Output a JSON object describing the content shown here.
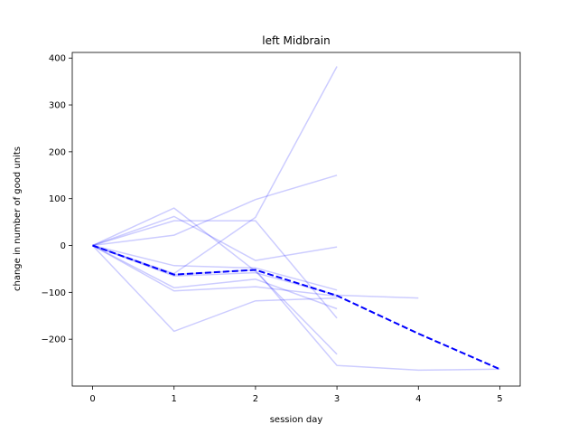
{
  "chart_data": {
    "type": "line",
    "title": "left Midbrain",
    "xlabel": "session day",
    "ylabel": "change in number of good units",
    "xlim": [
      -0.25,
      5.25
    ],
    "ylim": [
      -300,
      412
    ],
    "xticks": [
      0,
      1,
      2,
      3,
      4,
      5
    ],
    "yticks": [
      -200,
      -100,
      0,
      100,
      200,
      300,
      400
    ],
    "grid": false,
    "series": [
      {
        "style": "faint",
        "x": [
          0,
          1,
          2,
          3
        ],
        "y": [
          0,
          80,
          -55,
          -232
        ]
      },
      {
        "style": "faint",
        "x": [
          0,
          1,
          2,
          3
        ],
        "y": [
          0,
          53,
          53,
          -155
        ]
      },
      {
        "style": "faint",
        "x": [
          0,
          1,
          2,
          3
        ],
        "y": [
          0,
          22,
          98,
          150
        ]
      },
      {
        "style": "faint",
        "x": [
          0,
          1,
          2,
          3
        ],
        "y": [
          0,
          -60,
          60,
          382
        ]
      },
      {
        "style": "faint",
        "x": [
          0,
          1,
          2,
          3
        ],
        "y": [
          0,
          62,
          -32,
          -3
        ]
      },
      {
        "style": "faint",
        "x": [
          0,
          1,
          2,
          3
        ],
        "y": [
          0,
          -43,
          -48,
          -95
        ]
      },
      {
        "style": "faint",
        "x": [
          0,
          1,
          2,
          3
        ],
        "y": [
          0,
          -90,
          -72,
          -135
        ]
      },
      {
        "style": "faint",
        "x": [
          0,
          1,
          2,
          3
        ],
        "y": [
          0,
          -97,
          -88,
          -108
        ]
      },
      {
        "style": "faint",
        "x": [
          0,
          1,
          2,
          3
        ],
        "y": [
          0,
          -183,
          -118,
          -112
        ]
      },
      {
        "style": "faint",
        "x": [
          0,
          1,
          2,
          3,
          4
        ],
        "y": [
          0,
          -65,
          -58,
          -106,
          -112
        ]
      },
      {
        "style": "faint",
        "x": [
          0,
          1,
          2,
          3,
          4,
          5
        ],
        "y": [
          0,
          -62,
          -52,
          -256,
          -266,
          -264
        ]
      },
      {
        "style": "mean",
        "x": [
          0,
          1,
          2,
          3,
          4,
          5
        ],
        "y": [
          0,
          -62,
          -52,
          -107,
          -188,
          -264
        ]
      }
    ],
    "colors": {
      "line": "#0000ff"
    }
  }
}
